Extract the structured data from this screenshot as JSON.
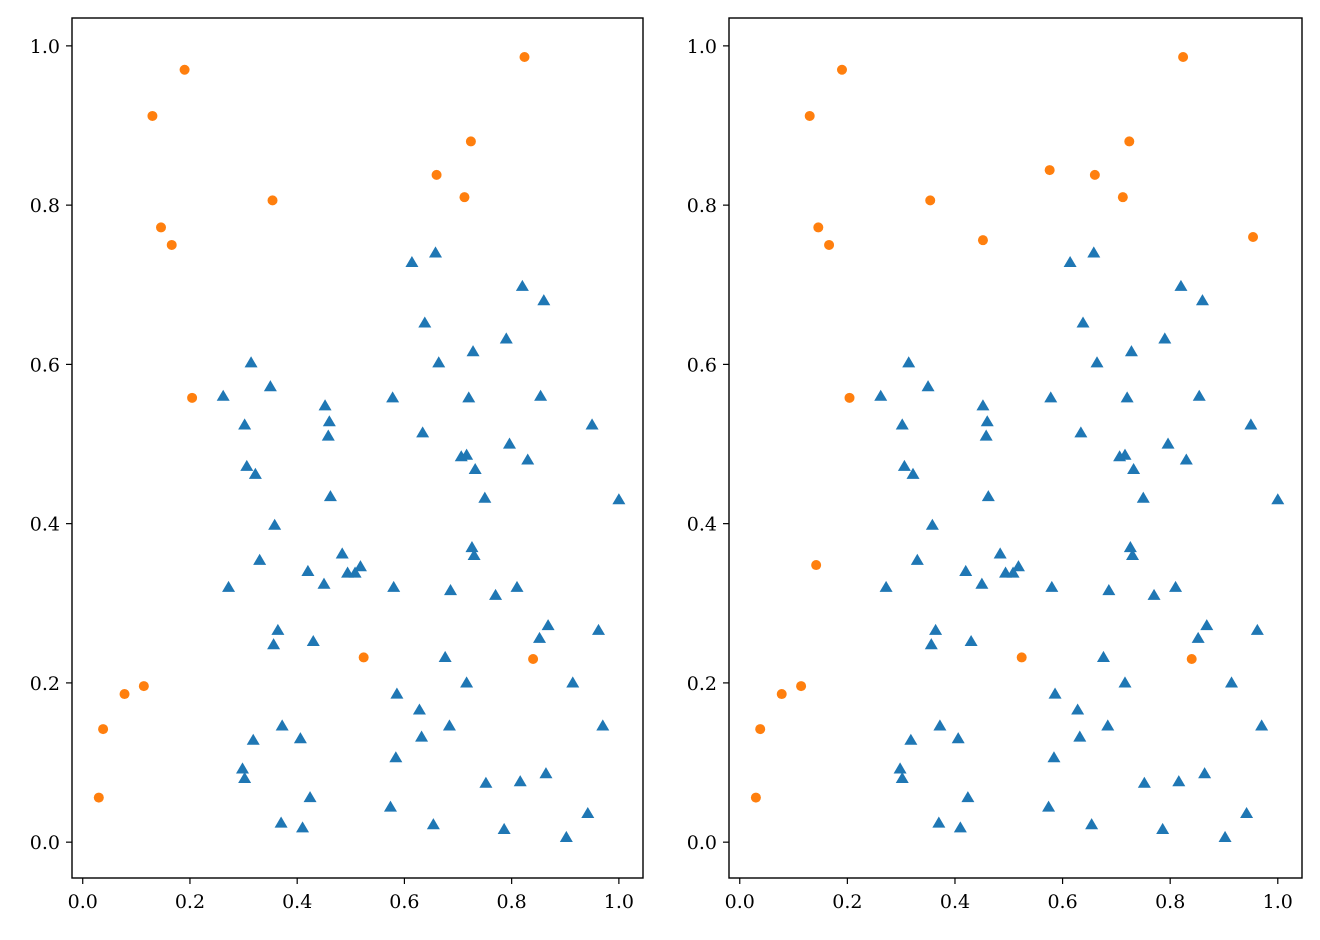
{
  "colors": {
    "triangles": "#1f77b4",
    "circles": "#ff7f0e"
  },
  "chart_data": [
    {
      "type": "scatter",
      "xlim": [
        -0.02,
        1.045
      ],
      "ylim": [
        -0.045,
        1.035
      ],
      "xticks": [
        "0.0",
        "0.2",
        "0.4",
        "0.6",
        "0.8",
        "1.0"
      ],
      "yticks": [
        "0.0",
        "0.2",
        "0.4",
        "0.6",
        "0.8",
        "1.0"
      ],
      "grid": false,
      "series": [
        {
          "marker": "triangle",
          "color": "#1f77b4",
          "points": [
            [
              0.262,
              0.56
            ],
            [
              0.272,
              0.32
            ],
            [
              0.298,
              0.092
            ],
            [
              0.302,
              0.08
            ],
            [
              0.302,
              0.524
            ],
            [
              0.306,
              0.472
            ],
            [
              0.314,
              0.602
            ],
            [
              0.318,
              0.128
            ],
            [
              0.322,
              0.462
            ],
            [
              0.33,
              0.354
            ],
            [
              0.35,
              0.572
            ],
            [
              0.356,
              0.248
            ],
            [
              0.358,
              0.398
            ],
            [
              0.364,
              0.266
            ],
            [
              0.37,
              0.024
            ],
            [
              0.372,
              0.146
            ],
            [
              0.406,
              0.13
            ],
            [
              0.41,
              0.018
            ],
            [
              0.42,
              0.34
            ],
            [
              0.424,
              0.056
            ],
            [
              0.43,
              0.252
            ],
            [
              0.45,
              0.324
            ],
            [
              0.452,
              0.548
            ],
            [
              0.458,
              0.51
            ],
            [
              0.46,
              0.528
            ],
            [
              0.462,
              0.434
            ],
            [
              0.484,
              0.362
            ],
            [
              0.494,
              0.338
            ],
            [
              0.508,
              0.338
            ],
            [
              0.518,
              0.346
            ],
            [
              0.574,
              0.044
            ],
            [
              0.578,
              0.558
            ],
            [
              0.58,
              0.32
            ],
            [
              0.584,
              0.106
            ],
            [
              0.586,
              0.186
            ],
            [
              0.614,
              0.728
            ],
            [
              0.628,
              0.166
            ],
            [
              0.632,
              0.132
            ],
            [
              0.634,
              0.514
            ],
            [
              0.638,
              0.652
            ],
            [
              0.654,
              0.022
            ],
            [
              0.658,
              0.74
            ],
            [
              0.664,
              0.602
            ],
            [
              0.676,
              0.232
            ],
            [
              0.684,
              0.146
            ],
            [
              0.686,
              0.316
            ],
            [
              0.706,
              0.484
            ],
            [
              0.716,
              0.2
            ],
            [
              0.716,
              0.486
            ],
            [
              0.72,
              0.558
            ],
            [
              0.726,
              0.37
            ],
            [
              0.728,
              0.616
            ],
            [
              0.73,
              0.36
            ],
            [
              0.732,
              0.468
            ],
            [
              0.75,
              0.432
            ],
            [
              0.752,
              0.074
            ],
            [
              0.77,
              0.31
            ],
            [
              0.786,
              0.016
            ],
            [
              0.79,
              0.632
            ],
            [
              0.796,
              0.5
            ],
            [
              0.81,
              0.32
            ],
            [
              0.816,
              0.076
            ],
            [
              0.82,
              0.698
            ],
            [
              0.83,
              0.48
            ],
            [
              0.852,
              0.256
            ],
            [
              0.854,
              0.56
            ],
            [
              0.86,
              0.68
            ],
            [
              0.864,
              0.086
            ],
            [
              0.868,
              0.272
            ],
            [
              0.902,
              0.006
            ],
            [
              0.914,
              0.2
            ],
            [
              0.942,
              0.036
            ],
            [
              0.95,
              0.524
            ],
            [
              0.962,
              0.266
            ],
            [
              0.97,
              0.146
            ],
            [
              1.0,
              0.43
            ]
          ]
        },
        {
          "marker": "circle",
          "color": "#ff7f0e",
          "points": [
            [
              0.03,
              0.056
            ],
            [
              0.038,
              0.142
            ],
            [
              0.078,
              0.186
            ],
            [
              0.114,
              0.196
            ],
            [
              0.13,
              0.912
            ],
            [
              0.146,
              0.772
            ],
            [
              0.166,
              0.75
            ],
            [
              0.19,
              0.97
            ],
            [
              0.204,
              0.558
            ],
            [
              0.354,
              0.806
            ],
            [
              0.524,
              0.232
            ],
            [
              0.66,
              0.838
            ],
            [
              0.712,
              0.81
            ],
            [
              0.724,
              0.88
            ],
            [
              0.824,
              0.986
            ],
            [
              0.84,
              0.23
            ]
          ]
        }
      ]
    },
    {
      "type": "scatter",
      "xlim": [
        -0.02,
        1.045
      ],
      "ylim": [
        -0.045,
        1.035
      ],
      "xticks": [
        "0.0",
        "0.2",
        "0.4",
        "0.6",
        "0.8",
        "1.0"
      ],
      "yticks": [
        "0.0",
        "0.2",
        "0.4",
        "0.6",
        "0.8",
        "1.0"
      ],
      "grid": false,
      "series": [
        {
          "marker": "triangle",
          "color": "#1f77b4",
          "points": [
            [
              0.262,
              0.56
            ],
            [
              0.272,
              0.32
            ],
            [
              0.298,
              0.092
            ],
            [
              0.302,
              0.08
            ],
            [
              0.302,
              0.524
            ],
            [
              0.306,
              0.472
            ],
            [
              0.314,
              0.602
            ],
            [
              0.318,
              0.128
            ],
            [
              0.322,
              0.462
            ],
            [
              0.33,
              0.354
            ],
            [
              0.35,
              0.572
            ],
            [
              0.356,
              0.248
            ],
            [
              0.358,
              0.398
            ],
            [
              0.364,
              0.266
            ],
            [
              0.37,
              0.024
            ],
            [
              0.372,
              0.146
            ],
            [
              0.406,
              0.13
            ],
            [
              0.41,
              0.018
            ],
            [
              0.42,
              0.34
            ],
            [
              0.424,
              0.056
            ],
            [
              0.43,
              0.252
            ],
            [
              0.45,
              0.324
            ],
            [
              0.452,
              0.548
            ],
            [
              0.458,
              0.51
            ],
            [
              0.46,
              0.528
            ],
            [
              0.462,
              0.434
            ],
            [
              0.484,
              0.362
            ],
            [
              0.494,
              0.338
            ],
            [
              0.508,
              0.338
            ],
            [
              0.518,
              0.346
            ],
            [
              0.574,
              0.044
            ],
            [
              0.578,
              0.558
            ],
            [
              0.58,
              0.32
            ],
            [
              0.584,
              0.106
            ],
            [
              0.586,
              0.186
            ],
            [
              0.614,
              0.728
            ],
            [
              0.628,
              0.166
            ],
            [
              0.632,
              0.132
            ],
            [
              0.634,
              0.514
            ],
            [
              0.638,
              0.652
            ],
            [
              0.654,
              0.022
            ],
            [
              0.658,
              0.74
            ],
            [
              0.664,
              0.602
            ],
            [
              0.676,
              0.232
            ],
            [
              0.684,
              0.146
            ],
            [
              0.686,
              0.316
            ],
            [
              0.706,
              0.484
            ],
            [
              0.716,
              0.2
            ],
            [
              0.716,
              0.486
            ],
            [
              0.72,
              0.558
            ],
            [
              0.726,
              0.37
            ],
            [
              0.728,
              0.616
            ],
            [
              0.73,
              0.36
            ],
            [
              0.732,
              0.468
            ],
            [
              0.75,
              0.432
            ],
            [
              0.752,
              0.074
            ],
            [
              0.77,
              0.31
            ],
            [
              0.786,
              0.016
            ],
            [
              0.79,
              0.632
            ],
            [
              0.796,
              0.5
            ],
            [
              0.81,
              0.32
            ],
            [
              0.816,
              0.076
            ],
            [
              0.82,
              0.698
            ],
            [
              0.83,
              0.48
            ],
            [
              0.852,
              0.256
            ],
            [
              0.854,
              0.56
            ],
            [
              0.86,
              0.68
            ],
            [
              0.864,
              0.086
            ],
            [
              0.868,
              0.272
            ],
            [
              0.902,
              0.006
            ],
            [
              0.914,
              0.2
            ],
            [
              0.942,
              0.036
            ],
            [
              0.95,
              0.524
            ],
            [
              0.962,
              0.266
            ],
            [
              0.97,
              0.146
            ],
            [
              1.0,
              0.43
            ]
          ]
        },
        {
          "marker": "circle",
          "color": "#ff7f0e",
          "points": [
            [
              0.03,
              0.056
            ],
            [
              0.038,
              0.142
            ],
            [
              0.078,
              0.186
            ],
            [
              0.114,
              0.196
            ],
            [
              0.13,
              0.912
            ],
            [
              0.142,
              0.348
            ],
            [
              0.146,
              0.772
            ],
            [
              0.166,
              0.75
            ],
            [
              0.19,
              0.97
            ],
            [
              0.204,
              0.558
            ],
            [
              0.354,
              0.806
            ],
            [
              0.452,
              0.756
            ],
            [
              0.524,
              0.232
            ],
            [
              0.576,
              0.844
            ],
            [
              0.66,
              0.838
            ],
            [
              0.712,
              0.81
            ],
            [
              0.724,
              0.88
            ],
            [
              0.824,
              0.986
            ],
            [
              0.84,
              0.23
            ],
            [
              0.954,
              0.76
            ]
          ]
        }
      ]
    }
  ]
}
